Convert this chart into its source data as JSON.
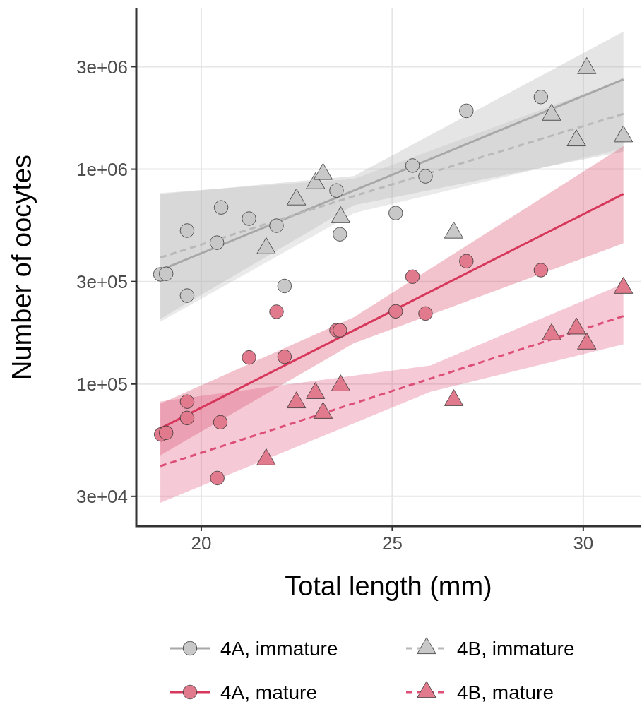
{
  "chart_data": {
    "type": "scatter",
    "xlabel": "Total length (mm)",
    "ylabel": "Number of oocytes",
    "log": "y",
    "grid": true,
    "legend": "bottom",
    "xlim": [
      18.3,
      31.5
    ],
    "xticks": [
      20,
      25,
      30
    ],
    "ylim": [
      21800,
      5600000
    ],
    "yticks": [
      {
        "value": 30000,
        "label": "3e+04"
      },
      {
        "value": 100000,
        "label": "1e+05"
      },
      {
        "value": 300000,
        "label": "3e+05"
      },
      {
        "value": 1000000,
        "label": "1e+06"
      },
      {
        "value": 3000000,
        "label": "3e+06"
      }
    ],
    "series": [
      {
        "name": "4A, immature",
        "type": "scatter",
        "marker": "circle",
        "color": "#c8c8c8",
        "x": [
          18.93,
          19.08,
          19.63,
          19.63,
          20.41,
          20.52,
          21.25,
          21.97,
          22.18,
          23.54,
          23.63,
          25.09,
          25.53,
          25.87,
          26.94,
          28.89
        ],
        "values": [
          324000,
          326000,
          518000,
          258000,
          455000,
          664000,
          589000,
          546000,
          286000,
          796000,
          498000,
          625000,
          1040000,
          927000,
          1870000,
          2170000
        ]
      },
      {
        "type": "line",
        "line_style": "solid",
        "color": "#a8a8a8",
        "x": [
          18.93,
          24,
          31.05
        ],
        "values": [
          339000,
          796000,
          2620000
        ],
        "lower": [
          201000,
          680000,
          1210000
        ],
        "upper": [
          767000,
          930000,
          4370000
        ]
      },
      {
        "name": "4B, immature",
        "type": "scatter",
        "marker": "triangle",
        "color": "#c8c8c8",
        "x": [
          21.7,
          22.49,
          22.99,
          23.19,
          23.65,
          26.61,
          29.17,
          29.82,
          30.09,
          31.05
        ],
        "values": [
          428000,
          722000,
          859000,
          949000,
          597000,
          506000,
          1790000,
          1360000,
          2950000,
          1420000
        ]
      },
      {
        "type": "line",
        "line_style": "dashed",
        "color": "#b9b9b9",
        "x": [
          18.93,
          24,
          31.05
        ],
        "values": [
          388000,
          750000,
          1810000
        ],
        "lower": [
          195000,
          625000,
          1250000
        ],
        "upper": [
          775000,
          900000,
          2620000
        ]
      },
      {
        "name": "4A, mature",
        "type": "scatter",
        "marker": "circle",
        "color": "#e07a8c",
        "x": [
          18.95,
          19.08,
          19.63,
          19.63,
          20.5,
          20.42,
          21.25,
          21.97,
          22.18,
          23.54,
          23.63,
          25.09,
          25.53,
          25.87,
          26.94,
          28.89
        ],
        "values": [
          58300,
          59300,
          82800,
          69500,
          66400,
          36500,
          133000,
          217000,
          134000,
          178000,
          178000,
          218000,
          316000,
          213000,
          373000,
          339000
        ]
      },
      {
        "type": "line",
        "line_style": "solid",
        "color": "#d6375a",
        "x": [
          18.93,
          24,
          31.05
        ],
        "values": [
          62100,
          178000,
          767000
        ],
        "lower": [
          46600,
          155000,
          452000
        ],
        "upper": [
          81000,
          205000,
          1280000
        ]
      },
      {
        "name": "4B, mature",
        "type": "scatter",
        "marker": "triangle",
        "color": "#e07a8c",
        "x": [
          21.7,
          22.49,
          22.99,
          23.19,
          23.65,
          26.61,
          29.17,
          29.82,
          30.09,
          31.05
        ],
        "values": [
          44500,
          82000,
          90600,
          73300,
          98400,
          84000,
          170000,
          181000,
          154000,
          280000
        ]
      },
      {
        "type": "line",
        "line_style": "dashed",
        "color": "#de4f78",
        "x": [
          18.93,
          26,
          31.05
        ],
        "values": [
          41500,
          106000,
          207000
        ],
        "lower": [
          28000,
          92000,
          153000
        ],
        "upper": [
          83000,
          122000,
          293000
        ]
      }
    ]
  }
}
